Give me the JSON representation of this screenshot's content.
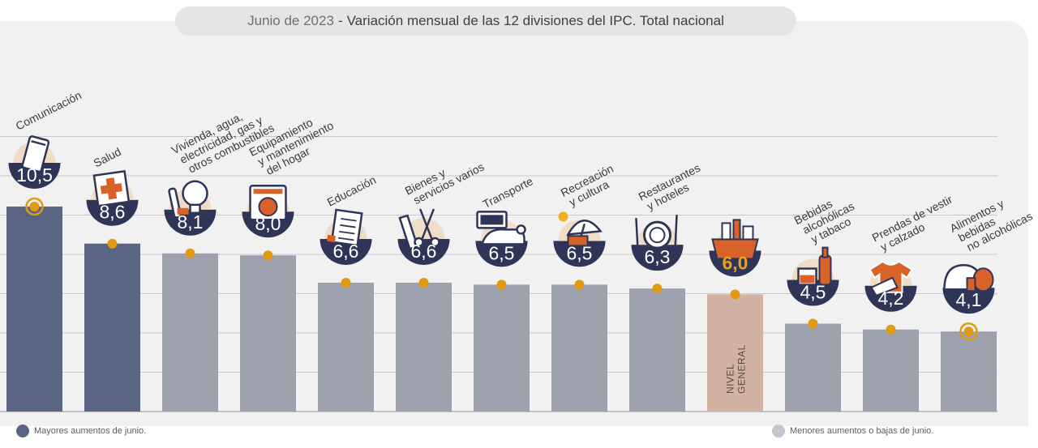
{
  "header": {
    "date": "Junio de 2023",
    "separator": "-",
    "title": "Variación mensual de las 12 divisiones del IPC. Total nacional"
  },
  "legend": {
    "higher": {
      "label": "Mayores aumentos de junio.",
      "color": "#5a6584"
    },
    "lower": {
      "label": "Menores aumentos o bajas de junio.",
      "color": "#c3c6cc"
    }
  },
  "colors": {
    "higher_bar": "#5a6584",
    "lower_bar": "#9ca1ad",
    "general_bar": "#d2b3a3",
    "general_value": "#e6a21c",
    "dot": "#e09a10",
    "badge": "#2f3556",
    "icon_accent": "#d9622b",
    "icon_halo": "#f0ddc8"
  },
  "chart_data": {
    "type": "bar",
    "ylim": [
      0,
      11.5
    ],
    "grid": true,
    "legend_position": "bottom",
    "inner_label": "NIVEL GENERAL",
    "categories": [
      {
        "label": [
          "Comunicación"
        ],
        "value": 10.5,
        "value_label": "10,5",
        "group": "higher",
        "icon": "phone-icon",
        "ring": true
      },
      {
        "label": [
          "Salud"
        ],
        "value": 8.6,
        "value_label": "8,6",
        "group": "higher",
        "icon": "first-aid-icon",
        "ring": false
      },
      {
        "label": [
          "Vivienda, agua,",
          "electricidad, gas y",
          "otros combustibles"
        ],
        "value": 8.1,
        "value_label": "8,1",
        "group": "lower",
        "icon": "lightbulb-icon",
        "ring": false
      },
      {
        "label": [
          "Equipamiento",
          "y mantenimiento",
          "del hogar"
        ],
        "value": 8.0,
        "value_label": "8,0",
        "group": "lower",
        "icon": "washing-machine-icon",
        "ring": false
      },
      {
        "label": [
          "Educación"
        ],
        "value": 6.6,
        "value_label": "6,6",
        "group": "lower",
        "icon": "notebook-icon",
        "ring": false
      },
      {
        "label": [
          "Bienes y",
          "servicios varios"
        ],
        "value": 6.6,
        "value_label": "6,6",
        "group": "lower",
        "icon": "scissors-comb-icon",
        "ring": false
      },
      {
        "label": [
          "Transporte"
        ],
        "value": 6.5,
        "value_label": "6,5",
        "group": "lower",
        "icon": "sube-card-icon",
        "ring": false
      },
      {
        "label": [
          "Recreación",
          "y cultura"
        ],
        "value": 6.5,
        "value_label": "6,5",
        "group": "lower",
        "icon": "beach-umbrella-icon",
        "ring": false
      },
      {
        "label": [
          "Restaurantes",
          "y hoteles"
        ],
        "value": 6.3,
        "value_label": "6,3",
        "group": "lower",
        "icon": "plate-cutlery-icon",
        "ring": false
      },
      {
        "label": [],
        "value": 6.0,
        "value_label": "6,0",
        "group": "general",
        "icon": "shopping-bag-icon",
        "ring": false
      },
      {
        "label": [
          "Bebidas",
          "alcohólicas",
          "y tabaco"
        ],
        "value": 4.5,
        "value_label": "4,5",
        "group": "lower",
        "icon": "bottle-glass-icon",
        "ring": false
      },
      {
        "label": [
          "Prendas de vestir",
          "y calzado"
        ],
        "value": 4.2,
        "value_label": "4,2",
        "group": "lower",
        "icon": "tshirt-icon",
        "ring": false
      },
      {
        "label": [
          "Alimentos y",
          "bebidas",
          "no alcohólicas"
        ],
        "value": 4.1,
        "value_label": "4,1",
        "group": "lower",
        "icon": "food-icon",
        "ring": true
      }
    ]
  }
}
